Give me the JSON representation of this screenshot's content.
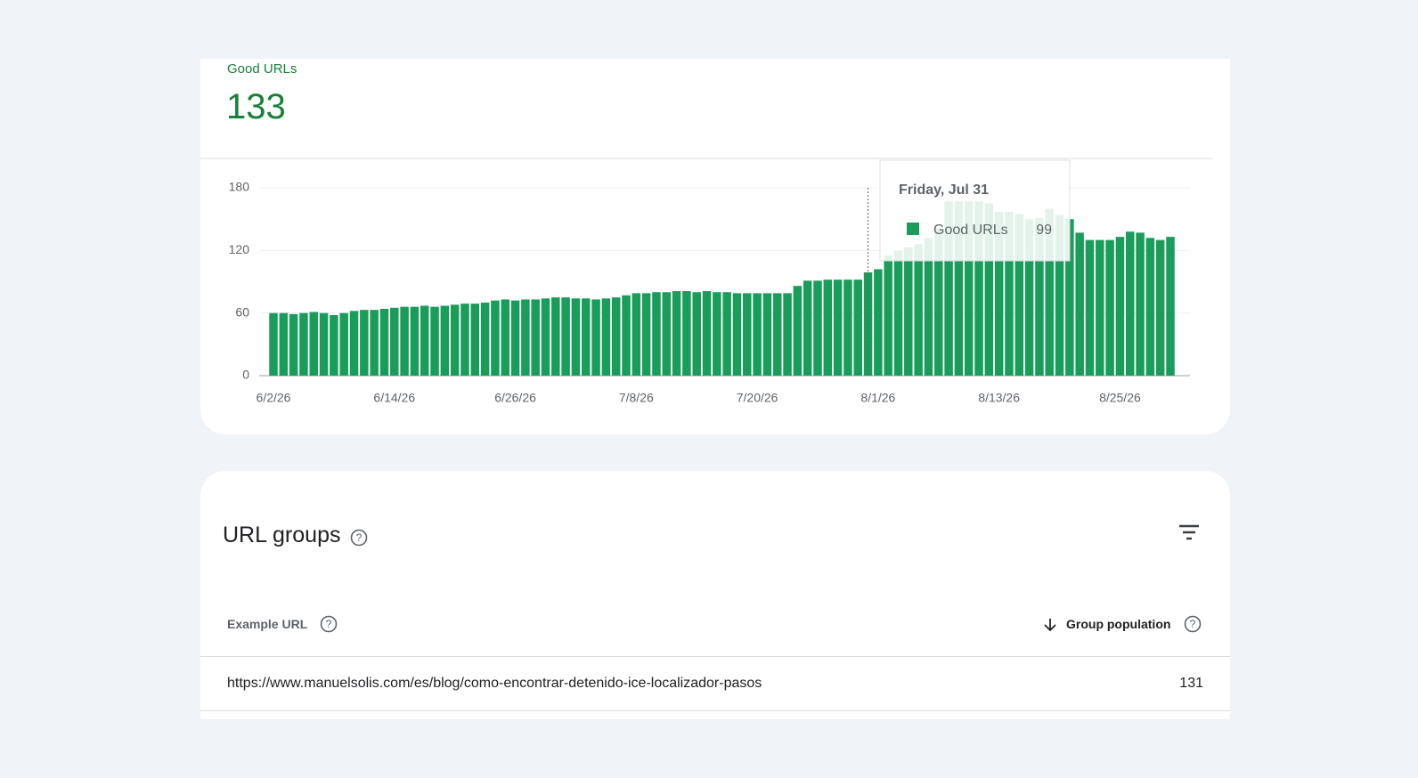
{
  "summary": {
    "label": "Good URLs",
    "value": 133
  },
  "chart_data": {
    "type": "bar",
    "categories": [
      "6/2/26",
      null,
      null,
      null,
      null,
      null,
      null,
      null,
      null,
      null,
      null,
      null,
      "6/14/26",
      null,
      null,
      null,
      null,
      null,
      null,
      null,
      null,
      null,
      null,
      null,
      "6/26/26",
      null,
      null,
      null,
      null,
      null,
      null,
      null,
      null,
      null,
      null,
      null,
      "7/8/26",
      null,
      null,
      null,
      null,
      null,
      null,
      null,
      null,
      null,
      null,
      null,
      "7/20/26",
      null,
      null,
      null,
      null,
      null,
      null,
      null,
      null,
      null,
      null,
      null,
      "8/1/26",
      null,
      null,
      null,
      null,
      null,
      null,
      null,
      null,
      null,
      null,
      null,
      "8/13/26",
      null,
      null,
      null,
      null,
      null,
      null,
      null,
      null,
      null,
      null,
      null,
      "8/25/26",
      null,
      null,
      null,
      null,
      null
    ],
    "series": [
      {
        "name": "Good URLs",
        "color": "#1a9c5a",
        "values": [
          60,
          60,
          59,
          60,
          61,
          60,
          58,
          60,
          62,
          63,
          63,
          64,
          65,
          66,
          66,
          67,
          66,
          67,
          68,
          69,
          69,
          70,
          72,
          73,
          72,
          73,
          73,
          74,
          75,
          75,
          74,
          74,
          73,
          74,
          75,
          77,
          79,
          79,
          80,
          80,
          81,
          81,
          80,
          81,
          80,
          80,
          79,
          79,
          79,
          79,
          79,
          79,
          86,
          91,
          91,
          92,
          92,
          92,
          92,
          99,
          102,
          115,
          120,
          123,
          126,
          132,
          141,
          167,
          167,
          167,
          167,
          165,
          157,
          157,
          155,
          150,
          151,
          160,
          154,
          150,
          137,
          130,
          130,
          130,
          133,
          138,
          137,
          132,
          130,
          133
        ]
      }
    ],
    "ylim": [
      0,
      180
    ],
    "yticks": [
      0,
      60,
      120,
      180
    ],
    "grid": true,
    "tooltip_title": "Friday, Jul 31"
  },
  "url_groups": {
    "title": "URL groups",
    "columns": [
      "Example URL",
      "Group population"
    ],
    "rows": [
      [
        "https://www.manuelsolis.com/es/blog/como-encontrar-detenido-ice-localizador-pasos",
        131
      ]
    ]
  }
}
